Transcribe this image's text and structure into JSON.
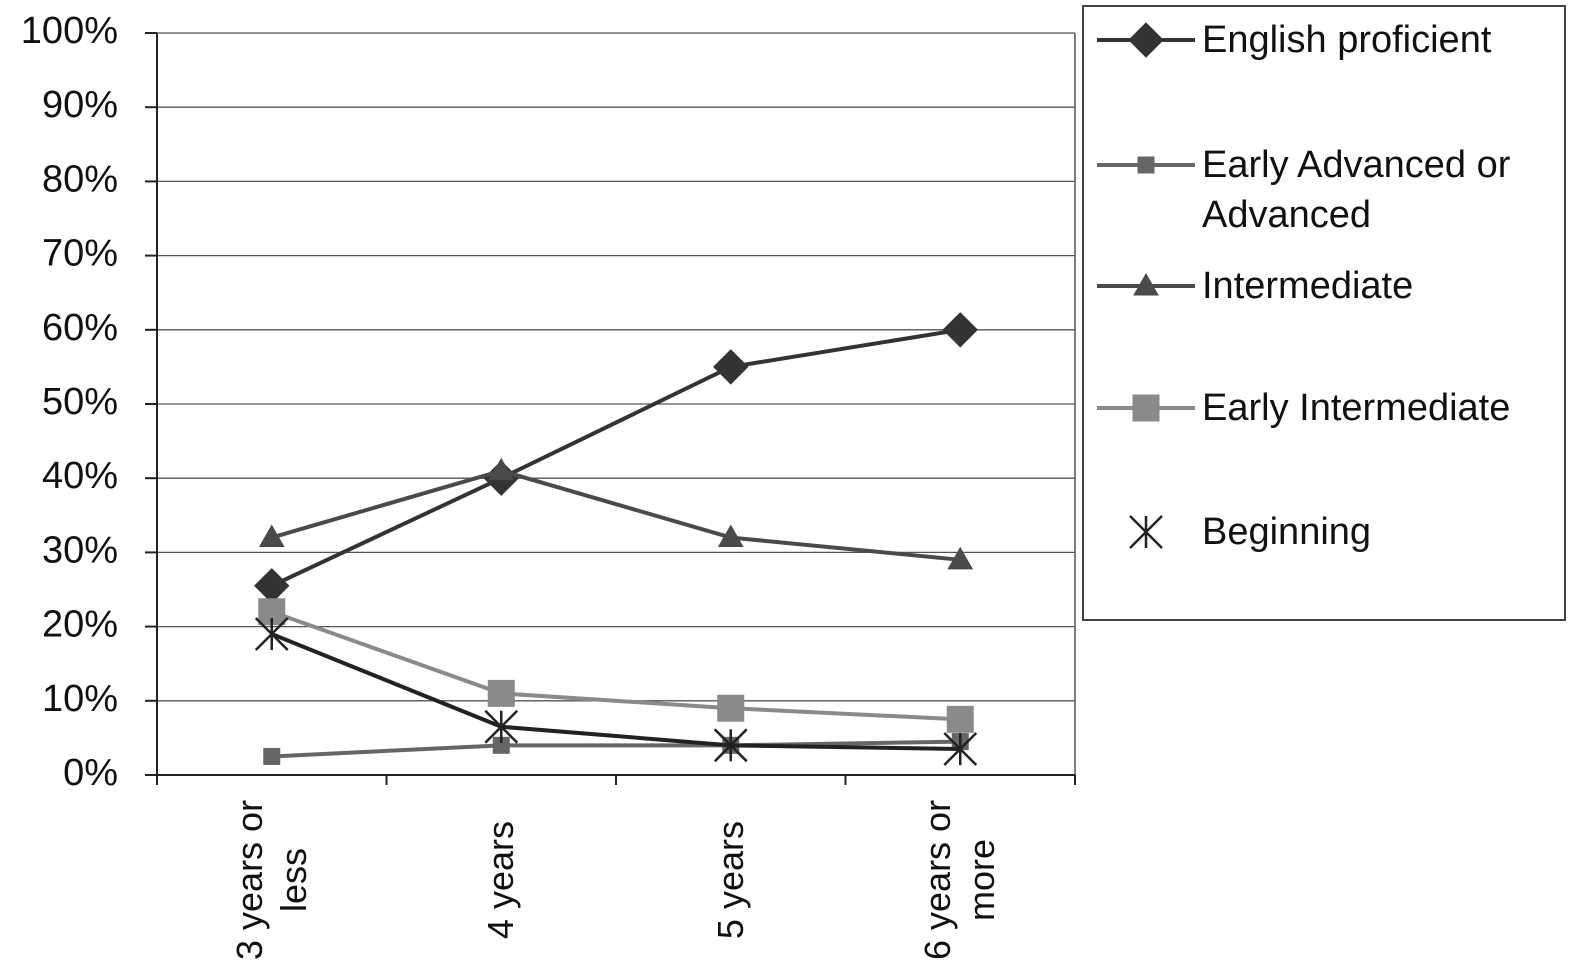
{
  "chart_data": {
    "type": "line",
    "categories": [
      "3 years or less",
      "4 years",
      "5 years",
      "6 years or more"
    ],
    "series": [
      {
        "name": "English proficient",
        "color": "#333333",
        "marker": "diamond",
        "values": [
          25.5,
          40,
          55,
          60
        ]
      },
      {
        "name": "Early Advanced or Advanced",
        "color": "#666666",
        "marker": "square-small",
        "values": [
          2.5,
          4,
          4,
          4.5
        ]
      },
      {
        "name": "Intermediate",
        "color": "#4a4a4a",
        "marker": "triangle",
        "values": [
          32,
          41,
          32,
          29
        ]
      },
      {
        "name": "Early Intermediate",
        "color": "#8a8a8a",
        "marker": "square",
        "values": [
          22,
          11,
          9,
          7.5
        ]
      },
      {
        "name": "Beginning",
        "color": "#222222",
        "marker": "asterisk",
        "values": [
          19,
          6.5,
          4,
          3.5
        ]
      }
    ],
    "ylim": [
      0,
      100
    ],
    "yticks": [
      {
        "value": 0,
        "label": "0%"
      },
      {
        "value": 10,
        "label": "10%"
      },
      {
        "value": 20,
        "label": "20%"
      },
      {
        "value": 30,
        "label": "30%"
      },
      {
        "value": 40,
        "label": "40%"
      },
      {
        "value": 50,
        "label": "50%"
      },
      {
        "value": 60,
        "label": "60%"
      },
      {
        "value": 70,
        "label": "70%"
      },
      {
        "value": 80,
        "label": "80%"
      },
      {
        "value": 90,
        "label": "90%"
      },
      {
        "value": 100,
        "label": "100%"
      }
    ],
    "grid": true,
    "legend": "right"
  }
}
